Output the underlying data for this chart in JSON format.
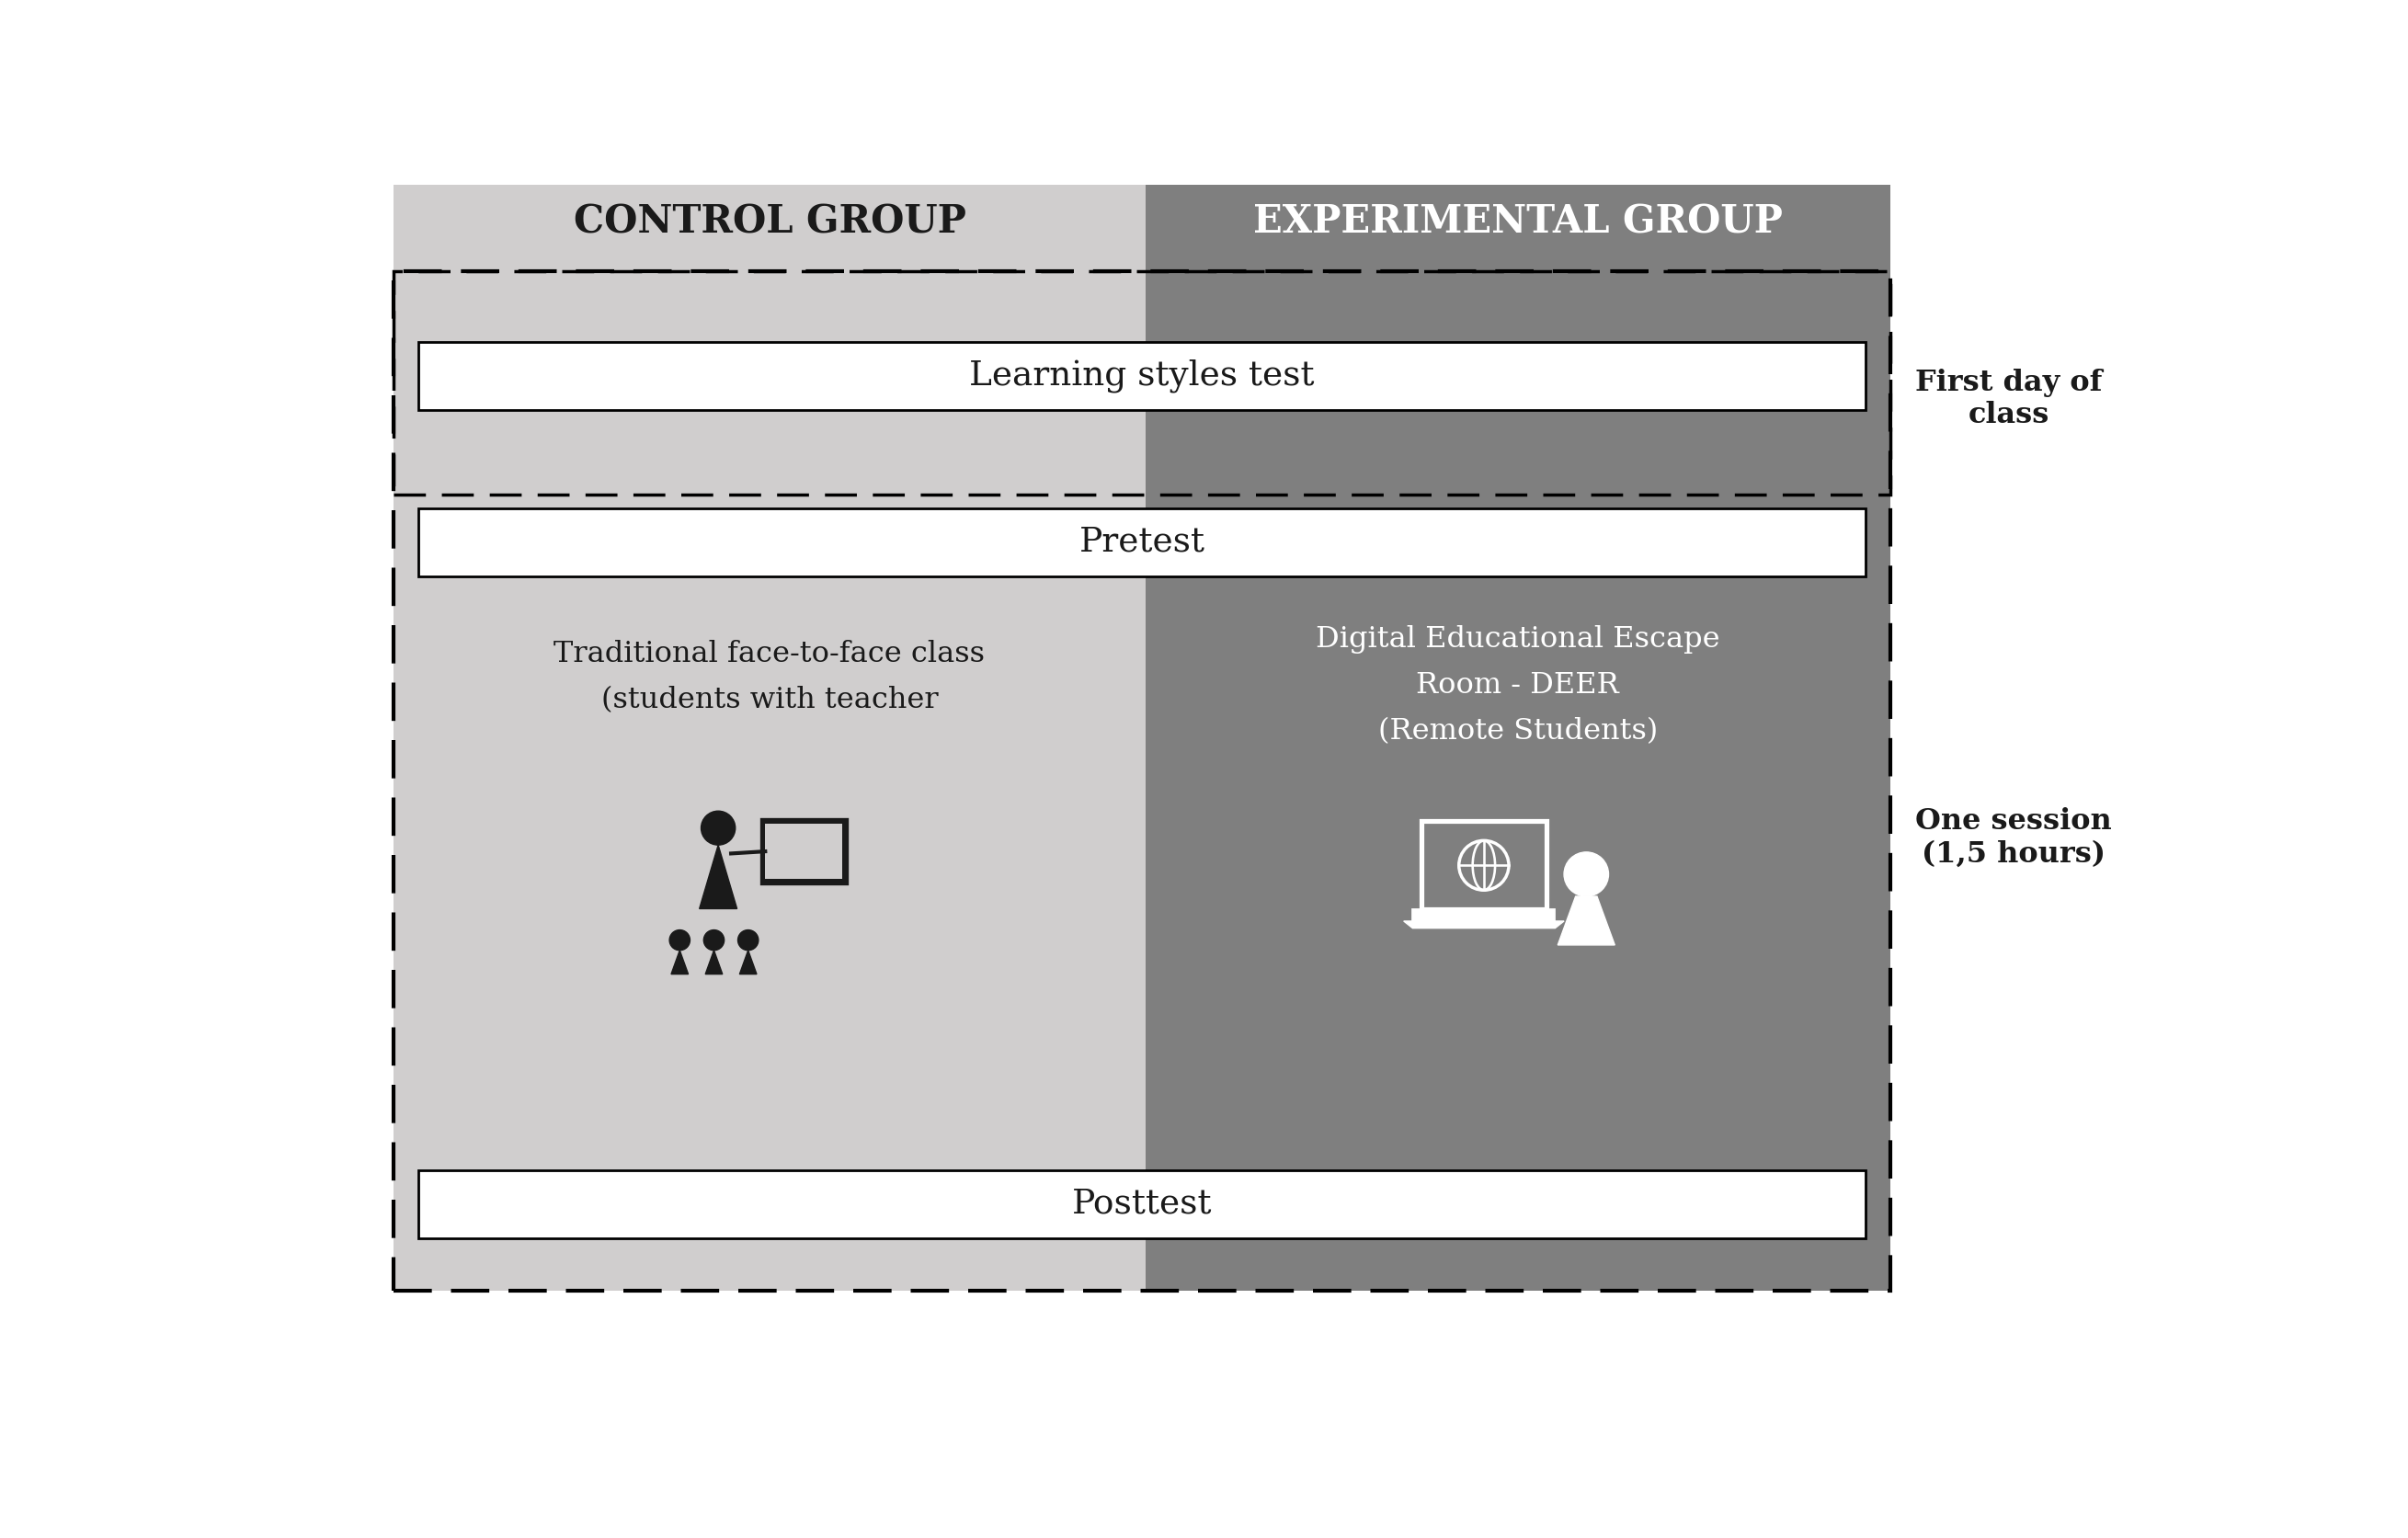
{
  "bg_color": "#ffffff",
  "control_group_color": "#d0cece",
  "experimental_group_color": "#7f7f7f",
  "header_control_color": "#d0cece",
  "header_exp_color": "#7f7f7f",
  "white_box_color": "#ffffff",
  "control_label": "CONTROL GROUP",
  "experimental_label": "EXPERIMENTAL GROUP",
  "learning_styles_text": "Learning styles test",
  "pretest_text": "Pretest",
  "posttest_text": "Posttest",
  "control_desc_line1": "Traditional face-to-face class",
  "control_desc_line2": "(students with teacher",
  "exp_desc_line1": "Digital Educational Escape",
  "exp_desc_line2": "Room - DEER",
  "exp_desc_line3": "(Remote Students)",
  "right_label_top": "First day of\nclass",
  "right_label_bottom": "One session\n(1,5 hours)",
  "outer_border_color": "#000000",
  "text_color_dark": "#1a1a1a",
  "text_color_white": "#ffffff"
}
